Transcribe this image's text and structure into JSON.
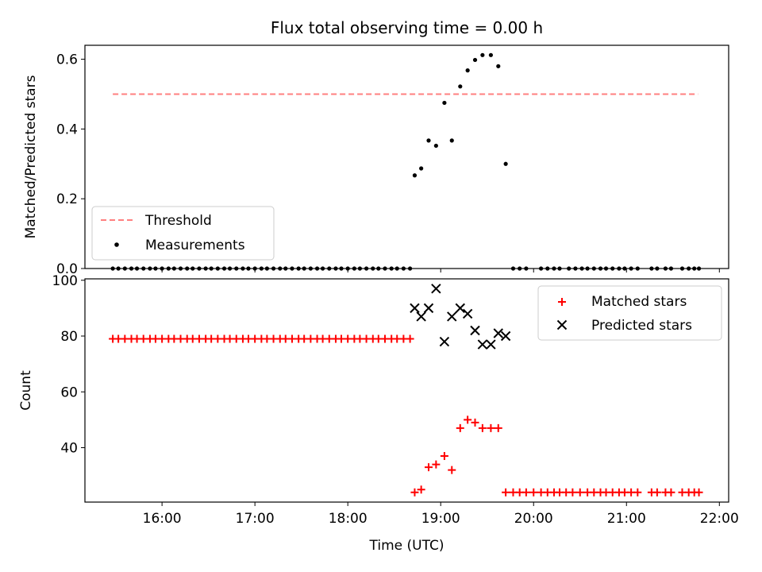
{
  "chart_data": [
    {
      "type": "scatter",
      "title": "Flux total observing time = 0.00 h",
      "xlabel": "",
      "ylabel": "Matched/Predicted stars",
      "xlim": [
        15.17,
        22.1
      ],
      "ylim": [
        0,
        0.64
      ],
      "yticks": [
        0.0,
        0.2,
        0.4,
        0.6
      ],
      "ytick_labels": [
        "0.0",
        "0.2",
        "0.4",
        "0.6"
      ],
      "xticks": [
        16,
        17,
        18,
        19,
        20,
        21,
        22
      ],
      "legend_position": "lower-left",
      "threshold": {
        "name": "Threshold",
        "x": [
          15.47,
          21.77
        ],
        "y": 0.5,
        "color": "#ff7f7f",
        "style": "dashed"
      },
      "series": [
        {
          "name": "Measurements",
          "color": "#000000",
          "marker": "dot",
          "points": [
            [
              15.47,
              0
            ],
            [
              15.53,
              0
            ],
            [
              15.6,
              0
            ],
            [
              15.67,
              0
            ],
            [
              15.73,
              0
            ],
            [
              15.8,
              0
            ],
            [
              15.87,
              0
            ],
            [
              15.93,
              0
            ],
            [
              16.0,
              0
            ],
            [
              16.07,
              0
            ],
            [
              16.13,
              0
            ],
            [
              16.2,
              0
            ],
            [
              16.27,
              0
            ],
            [
              16.33,
              0
            ],
            [
              16.4,
              0
            ],
            [
              16.47,
              0
            ],
            [
              16.53,
              0
            ],
            [
              16.6,
              0
            ],
            [
              16.67,
              0
            ],
            [
              16.73,
              0
            ],
            [
              16.8,
              0
            ],
            [
              16.87,
              0
            ],
            [
              16.93,
              0
            ],
            [
              17.0,
              0
            ],
            [
              17.07,
              0
            ],
            [
              17.13,
              0
            ],
            [
              17.2,
              0
            ],
            [
              17.27,
              0
            ],
            [
              17.33,
              0
            ],
            [
              17.4,
              0
            ],
            [
              17.47,
              0
            ],
            [
              17.53,
              0
            ],
            [
              17.6,
              0
            ],
            [
              17.67,
              0
            ],
            [
              17.73,
              0
            ],
            [
              17.8,
              0
            ],
            [
              17.87,
              0
            ],
            [
              17.93,
              0
            ],
            [
              18.0,
              0
            ],
            [
              18.07,
              0
            ],
            [
              18.13,
              0
            ],
            [
              18.2,
              0
            ],
            [
              18.27,
              0
            ],
            [
              18.33,
              0
            ],
            [
              18.4,
              0
            ],
            [
              18.47,
              0
            ],
            [
              18.53,
              0
            ],
            [
              18.6,
              0
            ],
            [
              18.67,
              0
            ],
            [
              18.72,
              0.267
            ],
            [
              18.79,
              0.287
            ],
            [
              18.87,
              0.367
            ],
            [
              18.95,
              0.352
            ],
            [
              19.04,
              0.475
            ],
            [
              19.12,
              0.367
            ],
            [
              19.21,
              0.522
            ],
            [
              19.29,
              0.568
            ],
            [
              19.37,
              0.598
            ],
            [
              19.45,
              0.612
            ],
            [
              19.54,
              0.612
            ],
            [
              19.62,
              0.58
            ],
            [
              19.7,
              0.3
            ],
            [
              19.78,
              0
            ],
            [
              19.85,
              0
            ],
            [
              19.92,
              0
            ],
            [
              20.08,
              0
            ],
            [
              20.15,
              0
            ],
            [
              20.22,
              0
            ],
            [
              20.28,
              0
            ],
            [
              20.38,
              0
            ],
            [
              20.45,
              0
            ],
            [
              20.52,
              0
            ],
            [
              20.58,
              0
            ],
            [
              20.65,
              0
            ],
            [
              20.72,
              0
            ],
            [
              20.78,
              0
            ],
            [
              20.85,
              0
            ],
            [
              20.92,
              0
            ],
            [
              20.98,
              0
            ],
            [
              21.05,
              0
            ],
            [
              21.12,
              0
            ],
            [
              21.27,
              0
            ],
            [
              21.33,
              0
            ],
            [
              21.42,
              0
            ],
            [
              21.48,
              0
            ],
            [
              21.6,
              0
            ],
            [
              21.67,
              0
            ],
            [
              21.73,
              0
            ],
            [
              21.78,
              0
            ]
          ]
        }
      ]
    },
    {
      "type": "scatter",
      "title": "",
      "xlabel": "Time (UTC)",
      "ylabel": "Count",
      "xlim": [
        15.17,
        22.1
      ],
      "ylim": [
        20.5,
        100.5
      ],
      "yticks": [
        40,
        60,
        80,
        100
      ],
      "ytick_labels": [
        "40",
        "60",
        "80",
        "100"
      ],
      "xticks": [
        16,
        17,
        18,
        19,
        20,
        21,
        22
      ],
      "xtick_labels": [
        "16:00",
        "17:00",
        "18:00",
        "19:00",
        "20:00",
        "21:00",
        "22:00"
      ],
      "legend_position": "top-right",
      "series": [
        {
          "name": "Matched stars",
          "color": "#ff0000",
          "marker": "plus",
          "points": [
            [
              15.47,
              79
            ],
            [
              15.53,
              79
            ],
            [
              15.6,
              79
            ],
            [
              15.67,
              79
            ],
            [
              15.73,
              79
            ],
            [
              15.8,
              79
            ],
            [
              15.87,
              79
            ],
            [
              15.93,
              79
            ],
            [
              16.0,
              79
            ],
            [
              16.07,
              79
            ],
            [
              16.13,
              79
            ],
            [
              16.2,
              79
            ],
            [
              16.27,
              79
            ],
            [
              16.33,
              79
            ],
            [
              16.4,
              79
            ],
            [
              16.47,
              79
            ],
            [
              16.53,
              79
            ],
            [
              16.6,
              79
            ],
            [
              16.67,
              79
            ],
            [
              16.73,
              79
            ],
            [
              16.8,
              79
            ],
            [
              16.87,
              79
            ],
            [
              16.93,
              79
            ],
            [
              17.0,
              79
            ],
            [
              17.07,
              79
            ],
            [
              17.13,
              79
            ],
            [
              17.2,
              79
            ],
            [
              17.27,
              79
            ],
            [
              17.33,
              79
            ],
            [
              17.4,
              79
            ],
            [
              17.47,
              79
            ],
            [
              17.53,
              79
            ],
            [
              17.6,
              79
            ],
            [
              17.67,
              79
            ],
            [
              17.73,
              79
            ],
            [
              17.8,
              79
            ],
            [
              17.87,
              79
            ],
            [
              17.93,
              79
            ],
            [
              18.0,
              79
            ],
            [
              18.07,
              79
            ],
            [
              18.13,
              79
            ],
            [
              18.2,
              79
            ],
            [
              18.27,
              79
            ],
            [
              18.33,
              79
            ],
            [
              18.4,
              79
            ],
            [
              18.47,
              79
            ],
            [
              18.53,
              79
            ],
            [
              18.6,
              79
            ],
            [
              18.67,
              79
            ],
            [
              18.72,
              24
            ],
            [
              18.79,
              25
            ],
            [
              18.87,
              33
            ],
            [
              18.95,
              34
            ],
            [
              19.04,
              37
            ],
            [
              19.12,
              32
            ],
            [
              19.21,
              47
            ],
            [
              19.29,
              50
            ],
            [
              19.37,
              49
            ],
            [
              19.45,
              47
            ],
            [
              19.54,
              47
            ],
            [
              19.62,
              47
            ],
            [
              19.7,
              24
            ],
            [
              19.78,
              24
            ],
            [
              19.85,
              24
            ],
            [
              19.92,
              24
            ],
            [
              20.0,
              24
            ],
            [
              20.08,
              24
            ],
            [
              20.15,
              24
            ],
            [
              20.22,
              24
            ],
            [
              20.28,
              24
            ],
            [
              20.35,
              24
            ],
            [
              20.42,
              24
            ],
            [
              20.5,
              24
            ],
            [
              20.58,
              24
            ],
            [
              20.65,
              24
            ],
            [
              20.72,
              24
            ],
            [
              20.78,
              24
            ],
            [
              20.85,
              24
            ],
            [
              20.92,
              24
            ],
            [
              20.98,
              24
            ],
            [
              21.05,
              24
            ],
            [
              21.12,
              24
            ],
            [
              21.27,
              24
            ],
            [
              21.33,
              24
            ],
            [
              21.42,
              24
            ],
            [
              21.48,
              24
            ],
            [
              21.6,
              24
            ],
            [
              21.67,
              24
            ],
            [
              21.73,
              24
            ],
            [
              21.78,
              24
            ]
          ]
        },
        {
          "name": "Predicted stars",
          "color": "#000000",
          "marker": "x",
          "points": [
            [
              18.72,
              90
            ],
            [
              18.79,
              87
            ],
            [
              18.87,
              90
            ],
            [
              18.95,
              97
            ],
            [
              19.04,
              78
            ],
            [
              19.12,
              87
            ],
            [
              19.21,
              90
            ],
            [
              19.29,
              88
            ],
            [
              19.37,
              82
            ],
            [
              19.45,
              77
            ],
            [
              19.54,
              77
            ],
            [
              19.62,
              81
            ],
            [
              19.7,
              80
            ]
          ]
        }
      ]
    }
  ]
}
